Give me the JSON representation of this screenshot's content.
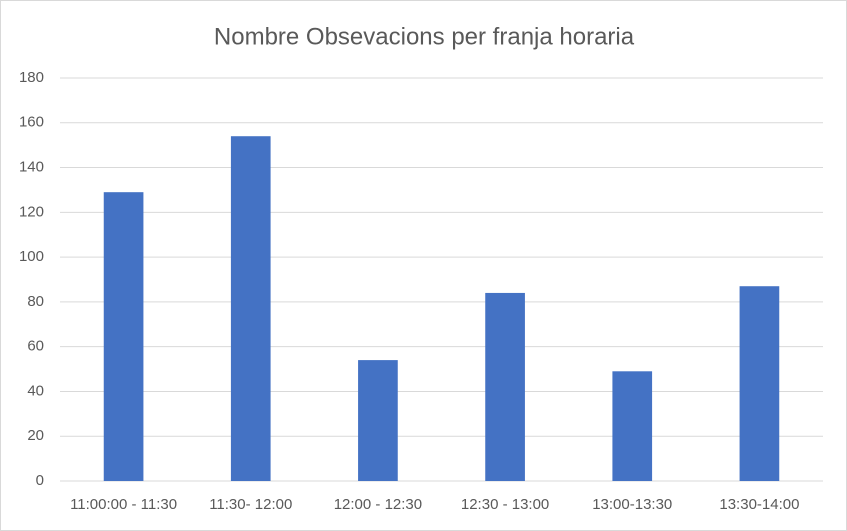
{
  "chart_data": {
    "type": "bar",
    "title": "Nombre Obsevacions per franja horaria",
    "categories": [
      "11:00:00 - 11:30",
      "11:30- 12:00",
      "12:00 - 12:30",
      "12:30 - 13:00",
      "13:00-13:30",
      "13:30-14:00"
    ],
    "values": [
      129,
      154,
      54,
      84,
      49,
      87
    ],
    "color": "#4472c4",
    "ylim": [
      0,
      180
    ],
    "yticks": [
      0,
      20,
      40,
      60,
      80,
      100,
      120,
      140,
      160,
      180
    ],
    "grid": true
  }
}
